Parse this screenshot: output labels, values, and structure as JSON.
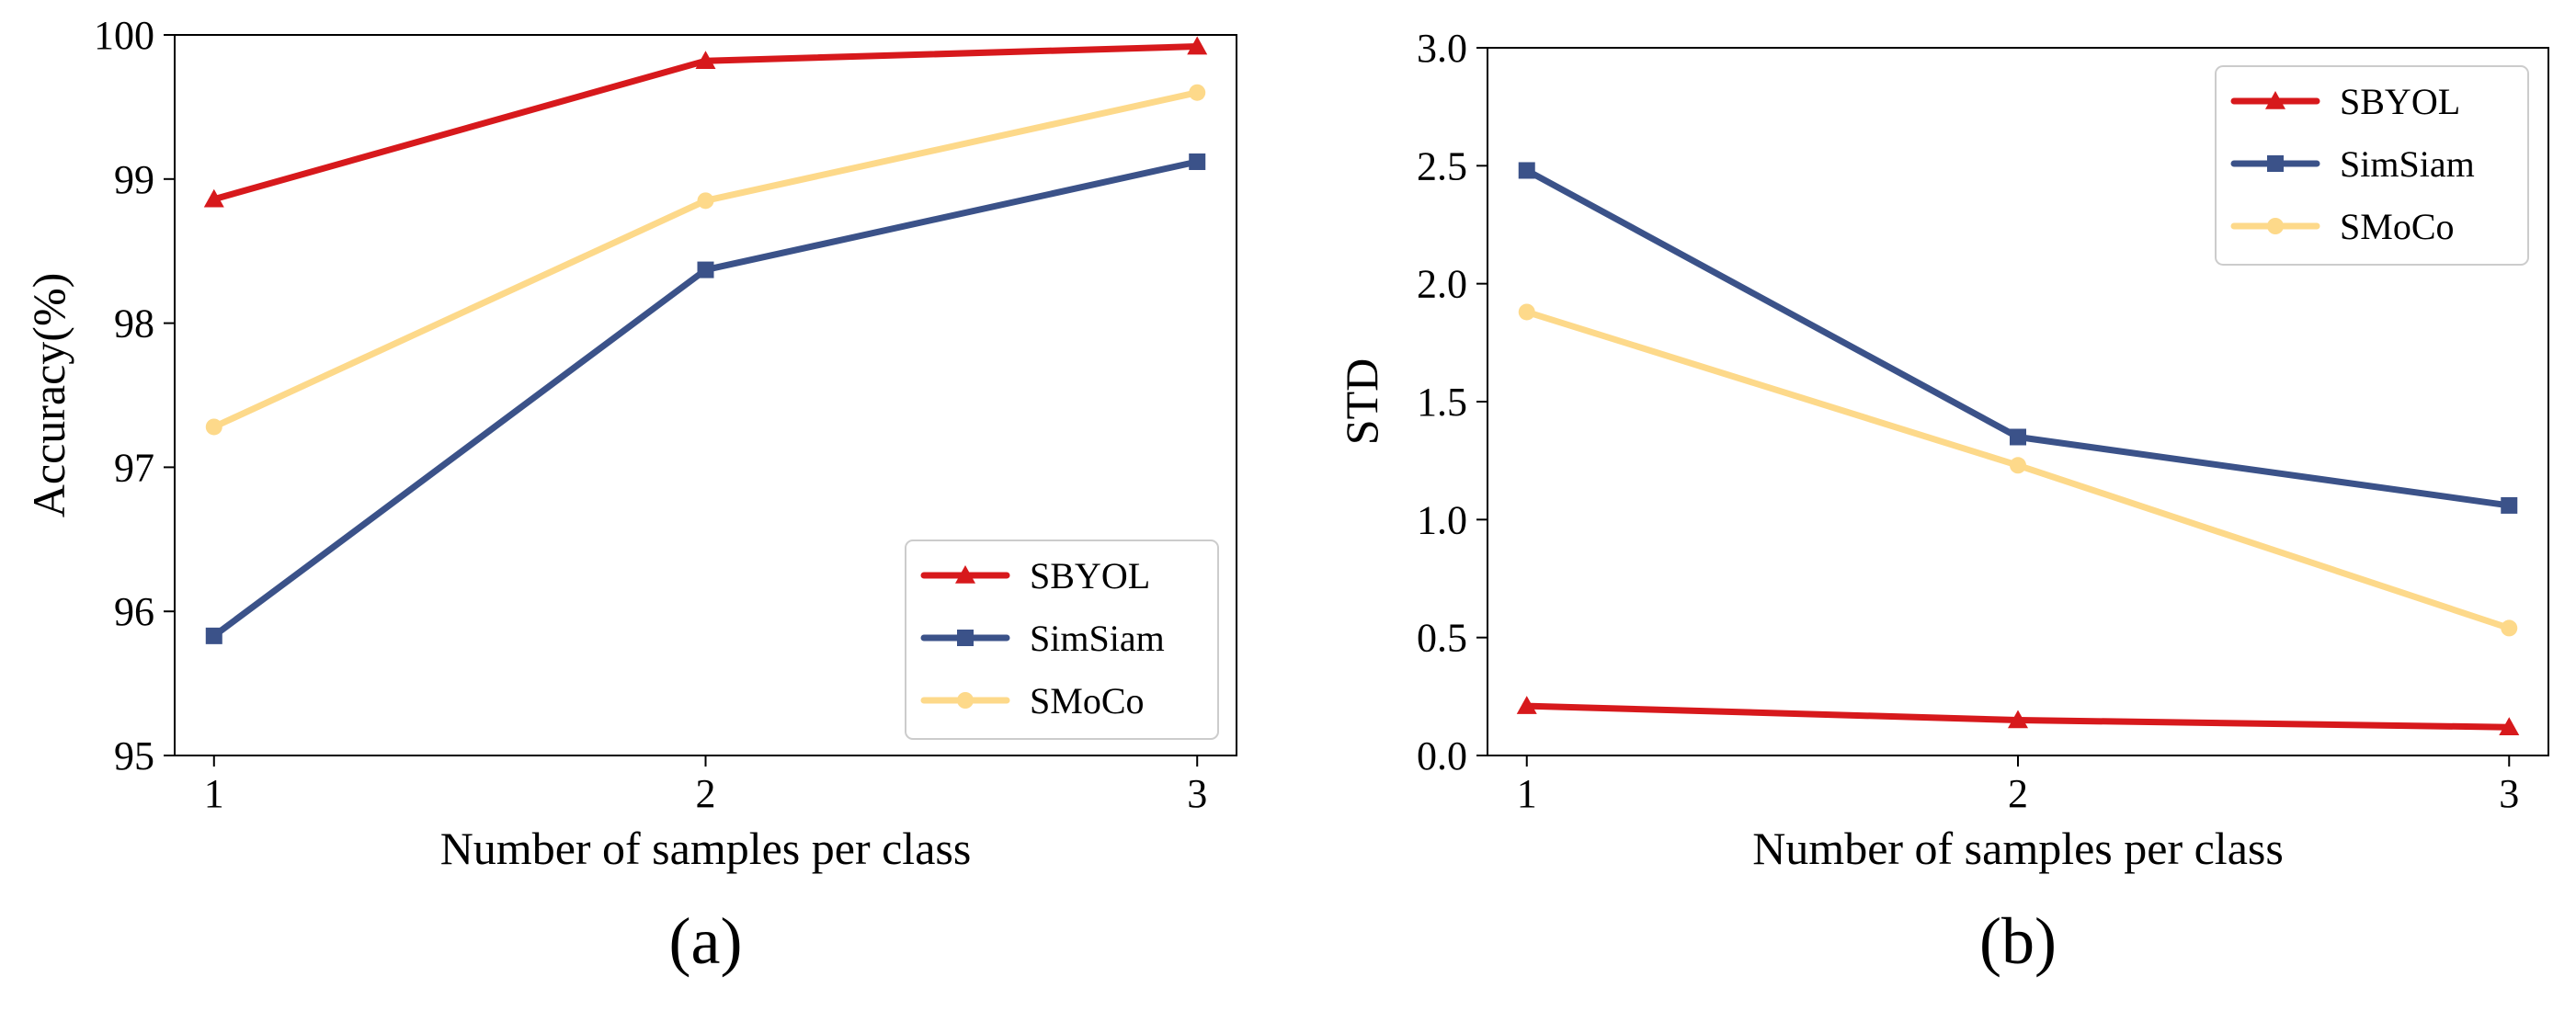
{
  "chart_data": [
    {
      "type": "line",
      "panel_label": "(a)",
      "title": "",
      "xlabel": "Number of samples per class",
      "ylabel": "Accuracy(%)",
      "x": [
        1,
        2,
        3
      ],
      "xticks": [
        "1",
        "2",
        "3"
      ],
      "xlim": [
        0.92,
        3.08
      ],
      "ylim": [
        95,
        100
      ],
      "yticks": [
        "95",
        "96",
        "97",
        "98",
        "99",
        "100"
      ],
      "grid": false,
      "legend_position": "bottom-right",
      "series": [
        {
          "name": "SBYOL",
          "color": "#d7191c",
          "marker": "triangle",
          "values": [
            98.86,
            99.82,
            99.92
          ]
        },
        {
          "name": "SimSiam",
          "color": "#3b5289",
          "marker": "square",
          "values": [
            95.83,
            98.37,
            99.12
          ]
        },
        {
          "name": "SMoCo",
          "color": "#fdd98a",
          "marker": "circle",
          "values": [
            97.28,
            98.85,
            99.6
          ]
        }
      ]
    },
    {
      "type": "line",
      "panel_label": "(b)",
      "title": "",
      "xlabel": "Number of samples per class",
      "ylabel": "STD",
      "x": [
        1,
        2,
        3
      ],
      "xticks": [
        "1",
        "2",
        "3"
      ],
      "xlim": [
        0.92,
        3.08
      ],
      "ylim": [
        0,
        3
      ],
      "yticks": [
        "0.0",
        "0.5",
        "1.0",
        "1.5",
        "2.0",
        "2.5",
        "3.0"
      ],
      "grid": false,
      "legend_position": "top-right",
      "series": [
        {
          "name": "SBYOL",
          "color": "#d7191c",
          "marker": "triangle",
          "values": [
            0.21,
            0.15,
            0.12
          ]
        },
        {
          "name": "SimSiam",
          "color": "#3b5289",
          "marker": "square",
          "values": [
            2.48,
            1.35,
            1.06
          ]
        },
        {
          "name": "SMoCo",
          "color": "#fdd98a",
          "marker": "circle",
          "values": [
            1.88,
            1.23,
            0.54
          ]
        }
      ]
    }
  ]
}
